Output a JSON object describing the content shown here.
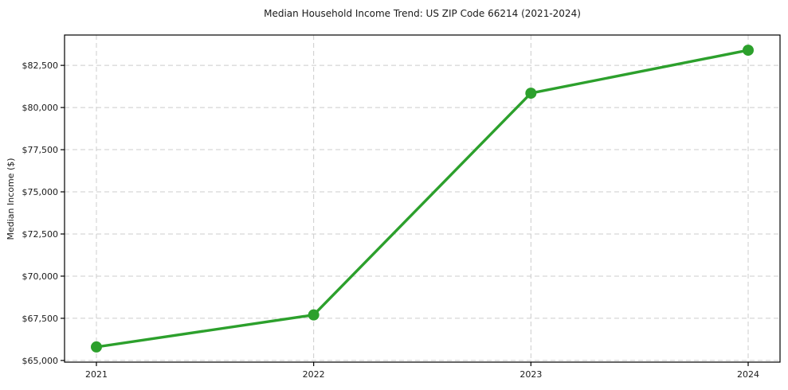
{
  "chart_data": {
    "type": "line",
    "title": "Median Household Income Trend: US ZIP Code 66214 (2021-2024)",
    "xlabel": "",
    "ylabel": "Median Income ($)",
    "x": [
      2021,
      2022,
      2023,
      2024
    ],
    "categories": [
      "2021",
      "2022",
      "2023",
      "2024"
    ],
    "series": [
      {
        "name": "Median Income",
        "values": [
          65800,
          67700,
          80850,
          83400
        ]
      }
    ],
    "ylim": [
      64900,
      84300
    ],
    "yticks": [
      65000,
      67500,
      70000,
      72500,
      75000,
      77500,
      80000,
      82500
    ],
    "ytick_labels": [
      "$65,000",
      "$67,500",
      "$70,000",
      "$72,500",
      "$75,000",
      "$77,500",
      "$80,000",
      "$82,500"
    ],
    "grid": true,
    "grid_style": "dashed",
    "grid_color": "#cccccc",
    "line_color": "#2ca02c",
    "marker": "circle",
    "marker_radius": 7,
    "line_width": 3.4,
    "spine_color": "#000000",
    "legend": "none"
  }
}
